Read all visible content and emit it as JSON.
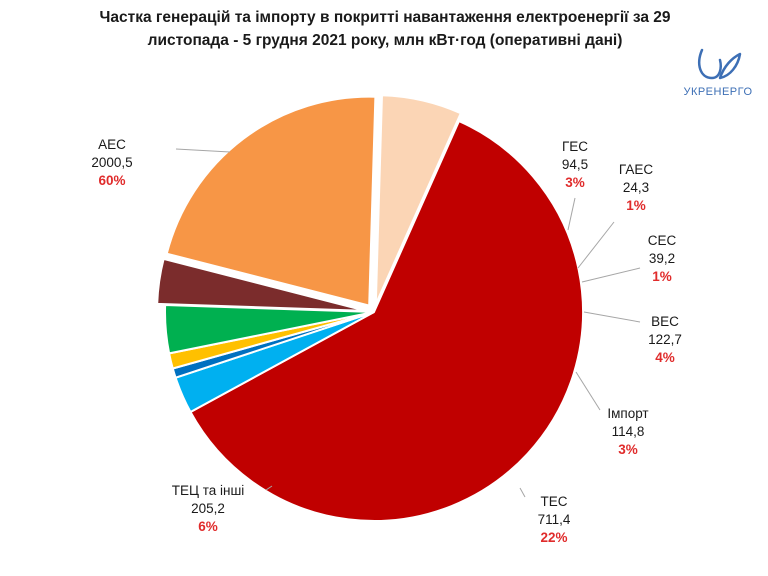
{
  "title": {
    "line1": "Частка генерацій та імпорту в покритті навантаження електроенергії за 29",
    "line2": "листопада - 5 грудня 2021 року, млн кВт·год (оперативні дані)"
  },
  "logo": {
    "text": "УКРЕНЕРГО",
    "icon": "ukrenergo-logo-icon",
    "color": "#3d6fb5"
  },
  "chart_data": {
    "type": "pie",
    "title": "Частка генерацій та імпорту в покритті навантаження електроенергії за 29 листопада - 5 грудня 2021 року, млн кВт·год (оперативні дані)",
    "categories": [
      "АЕС",
      "ГЕС",
      "ГАЕС",
      "СЕС",
      "ВЕС",
      "Імпорт",
      "ТЕС",
      "ТЕЦ та інші"
    ],
    "values": [
      2000.5,
      94.5,
      24.3,
      39.2,
      122.7,
      114.8,
      711.4,
      205.2
    ],
    "value_labels": [
      "2000,5",
      "94,5",
      "24,3",
      "39,2",
      "122,7",
      "114,8",
      "711,4",
      "205,2"
    ],
    "percent_labels": [
      "60%",
      "3%",
      "1%",
      "1%",
      "4%",
      "3%",
      "22%",
      "6%"
    ],
    "colors": [
      "#c00000",
      "#00b0f0",
      "#0070c0",
      "#ffc000",
      "#00b050",
      "#7b2c2c",
      "#f79646",
      "#fbd5b5"
    ],
    "explode": "Імпорт, ТЕС, ТЕЦ та інші",
    "legend": "none"
  }
}
